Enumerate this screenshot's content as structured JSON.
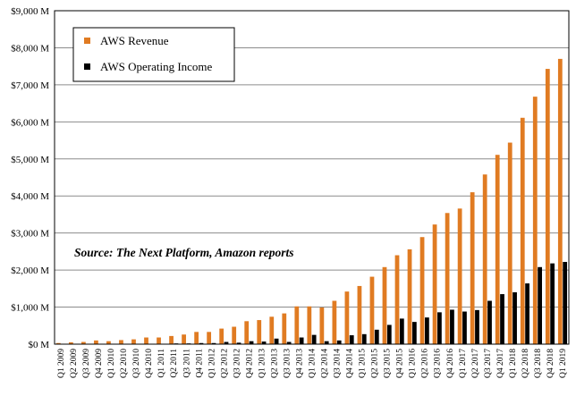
{
  "chart_data": {
    "type": "bar",
    "categories": [
      "Q1 2009",
      "Q2 2009",
      "Q3 2009",
      "Q4 2009",
      "Q1 2010",
      "Q2 2010",
      "Q3 2010",
      "Q4 2010",
      "Q1 2011",
      "Q2 2011",
      "Q3 2011",
      "Q4 2011",
      "Q1 2012",
      "Q2 2012",
      "Q3 2012",
      "Q4 2012",
      "Q1 2013",
      "Q2 2013",
      "Q3 2013",
      "Q4 2013",
      "Q1 2014",
      "Q2 2014",
      "Q3 2014",
      "Q4 2014",
      "Q1 2015",
      "Q2 2015",
      "Q3 2015",
      "Q4 2015",
      "Q1 2016",
      "Q2 2016",
      "Q3 2016",
      "Q4 2016",
      "Q1 2017",
      "Q2 2017",
      "Q3 2017",
      "Q4 2017",
      "Q1 2018",
      "Q2 2018",
      "Q3 2018",
      "Q4 2018",
      "Q1 2019"
    ],
    "series": [
      {
        "name": "AWS Revenue",
        "color": "#e07b22",
        "values": [
          30,
          50,
          60,
          100,
          80,
          110,
          130,
          180,
          180,
          220,
          260,
          330,
          330,
          420,
          470,
          620,
          650,
          740,
          830,
          1020,
          1020,
          990,
          1170,
          1420,
          1570,
          1820,
          2080,
          2400,
          2560,
          2890,
          3230,
          3540,
          3660,
          4100,
          4580,
          5110,
          5440,
          6110,
          6680,
          7430,
          7700
        ]
      },
      {
        "name": "AWS Operating Income",
        "color": "#000000",
        "values": [
          0,
          0,
          0,
          0,
          0,
          0,
          0,
          0,
          0,
          20,
          20,
          30,
          30,
          60,
          40,
          80,
          70,
          150,
          60,
          180,
          250,
          80,
          100,
          240,
          270,
          390,
          520,
          690,
          600,
          720,
          860,
          930,
          880,
          920,
          1170,
          1350,
          1400,
          1640,
          2080,
          2180,
          2220
        ]
      }
    ],
    "ylim": [
      0,
      9000
    ],
    "y_ticks": [
      0,
      1000,
      2000,
      3000,
      4000,
      5000,
      6000,
      7000,
      8000,
      9000
    ],
    "y_tick_labels": [
      "$0 M",
      "$1,000 M",
      "$2,000 M",
      "$3,000 M",
      "$4,000 M",
      "$5,000 M",
      "$6,000 M",
      "$7,000 M",
      "$8,000 M",
      "$9,000 M"
    ],
    "annotation": "Source: The Next Platform, Amazon reports",
    "legend_position": "top-left",
    "grid": true
  }
}
